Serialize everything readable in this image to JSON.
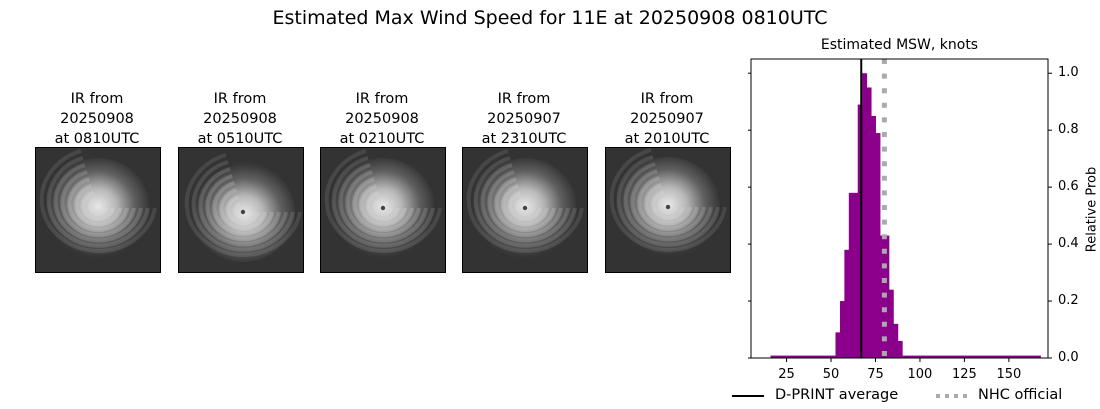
{
  "title": "Estimated Max Wind Speed for 11E at 20250908 0810UTC",
  "ir_panels": [
    {
      "line1": "IR from",
      "line2": "20250908",
      "line3": "at 0810UTC",
      "eye_x": 62,
      "eye_y": 60,
      "eye_visible": false
    },
    {
      "line1": "IR from",
      "line2": "20250908",
      "line3": "at 0510UTC",
      "eye_x": 64,
      "eye_y": 64,
      "eye_visible": true
    },
    {
      "line1": "IR from",
      "line2": "20250908",
      "line3": "at 0210UTC",
      "eye_x": 62,
      "eye_y": 60,
      "eye_visible": true
    },
    {
      "line1": "IR from",
      "line2": "20250907",
      "line3": "at 2310UTC",
      "eye_x": 62,
      "eye_y": 60,
      "eye_visible": true
    },
    {
      "line1": "IR from",
      "line2": "20250907",
      "line3": "at 2010UTC",
      "eye_x": 62,
      "eye_y": 59,
      "eye_visible": true
    }
  ],
  "chart_data": {
    "type": "bar",
    "title": "Estimated MSW, knots",
    "xlabel": "",
    "ylabel": "Relative Prob",
    "xlim": [
      5,
      172
    ],
    "ylim": [
      0.0,
      1.05
    ],
    "xticks": [
      25,
      50,
      75,
      100,
      125,
      150
    ],
    "yticks": [
      0.0,
      0.2,
      0.4,
      0.6,
      0.8,
      1.0
    ],
    "ytick_labels": [
      "0.0",
      "0.2",
      "0.4",
      "0.6",
      "0.8",
      "1.0"
    ],
    "y_axis_side": "right",
    "bar_color": "#8b008b",
    "bin_width": 2.5,
    "x": [
      52.5,
      55,
      57.5,
      60,
      62.5,
      65,
      67.5,
      70,
      72.5,
      75,
      77.5,
      80,
      82.5,
      85,
      87.5
    ],
    "values": [
      0.09,
      0.2,
      0.38,
      0.58,
      0.58,
      0.89,
      1.0,
      0.95,
      0.85,
      0.79,
      0.43,
      0.43,
      0.24,
      0.12,
      0.06
    ],
    "baseline_range": [
      16,
      168
    ],
    "baseline_value": 0.005,
    "dprint_average": 67,
    "nhc_official": 80,
    "legend": [
      {
        "label": "D-PRINT average",
        "style": "solid",
        "color": "#000000"
      },
      {
        "label": "NHC official",
        "style": "dotted",
        "color": "#aaaaaa"
      }
    ],
    "legend_position": "bottom"
  }
}
